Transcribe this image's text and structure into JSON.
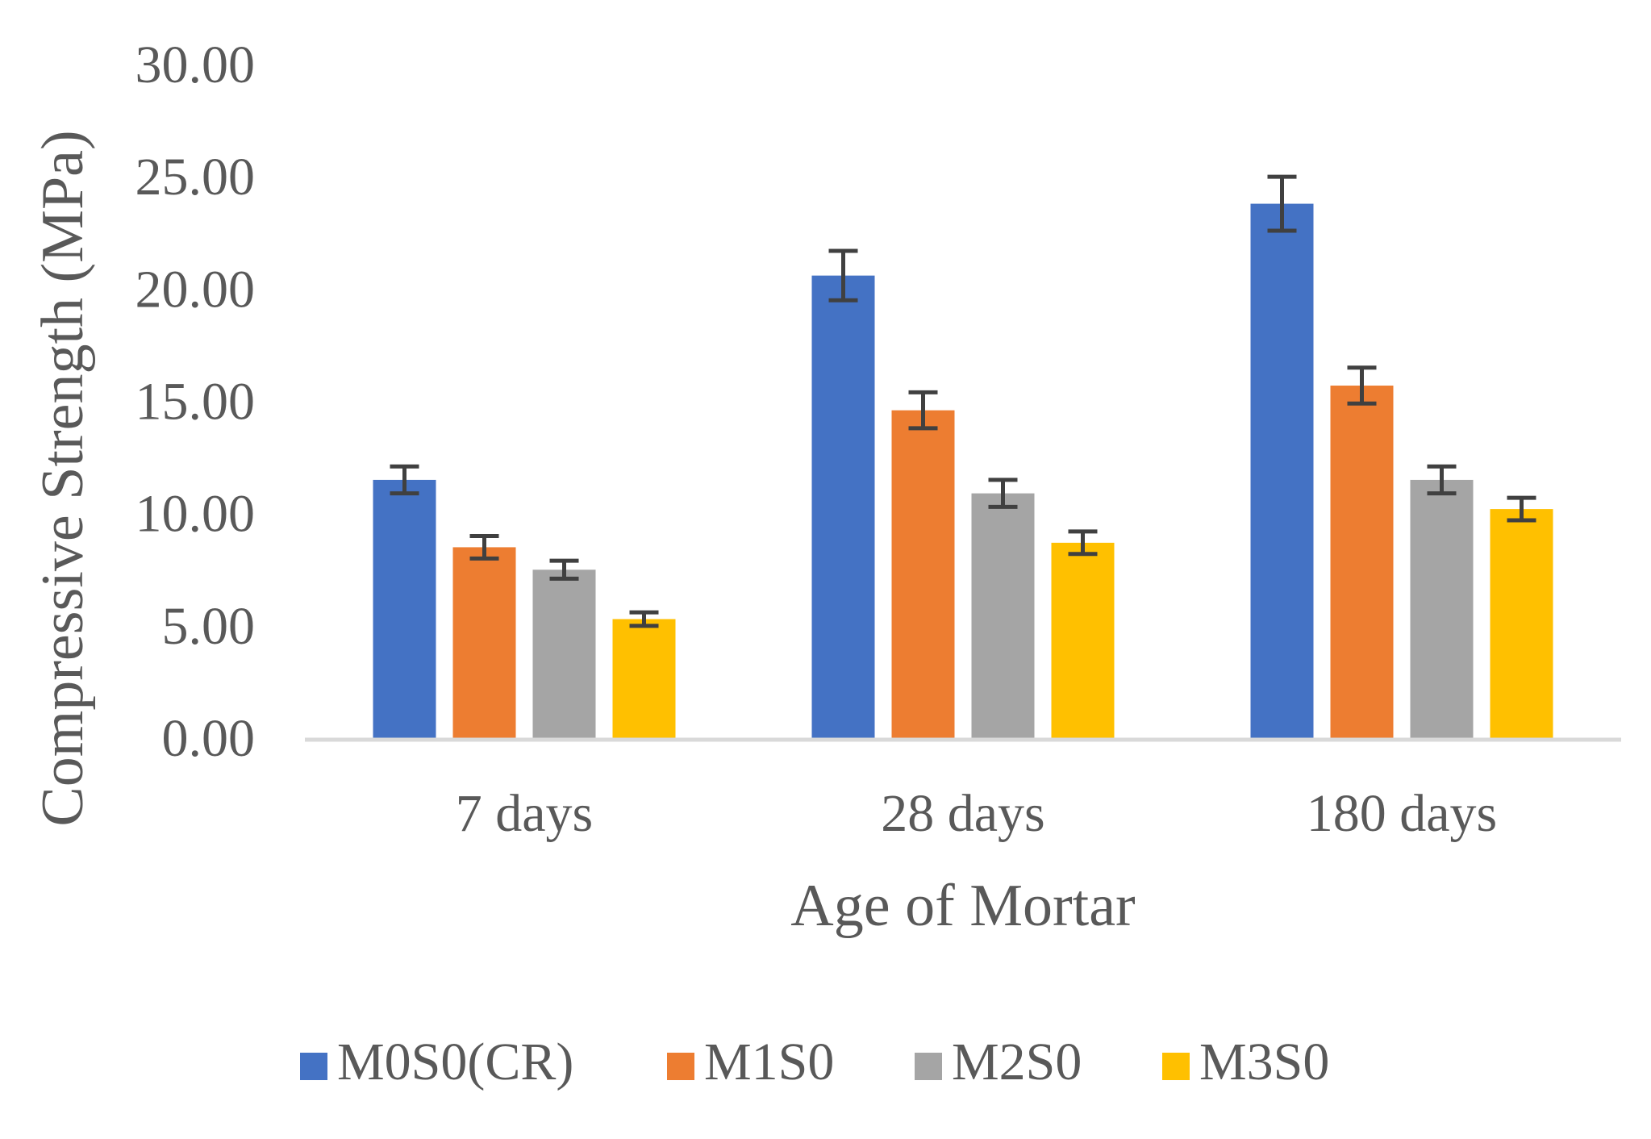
{
  "chart_data": {
    "type": "bar",
    "title": "",
    "xlabel": "Age of Mortar",
    "ylabel": "Compressive  Strength (MPa)",
    "ylim": [
      0,
      30
    ],
    "yticks": [
      "0.00",
      "5.00",
      "10.00",
      "15.00",
      "20.00",
      "25.00",
      "30.00"
    ],
    "ytick_values": [
      0,
      5,
      10,
      15,
      20,
      25,
      30
    ],
    "grid": false,
    "legend_position": "bottom",
    "categories": [
      "7 days",
      "28 days",
      "180 days"
    ],
    "series": [
      {
        "name": "M0S0(CR)",
        "color": "#4472C4",
        "values": [
          11.5,
          20.6,
          23.8
        ],
        "errors": [
          0.6,
          1.1,
          1.2
        ]
      },
      {
        "name": "M1S0",
        "color": "#ED7D31",
        "values": [
          8.5,
          14.6,
          15.7
        ],
        "errors": [
          0.5,
          0.8,
          0.8
        ]
      },
      {
        "name": "M2S0",
        "color": "#A5A5A5",
        "values": [
          7.5,
          10.9,
          11.5
        ],
        "errors": [
          0.4,
          0.6,
          0.6
        ]
      },
      {
        "name": "M3S0",
        "color": "#FFC000",
        "values": [
          5.3,
          8.7,
          10.2
        ],
        "errors": [
          0.3,
          0.5,
          0.5
        ]
      }
    ],
    "axis_color": "#D9D9D9",
    "error_bar_color": "#404040"
  }
}
